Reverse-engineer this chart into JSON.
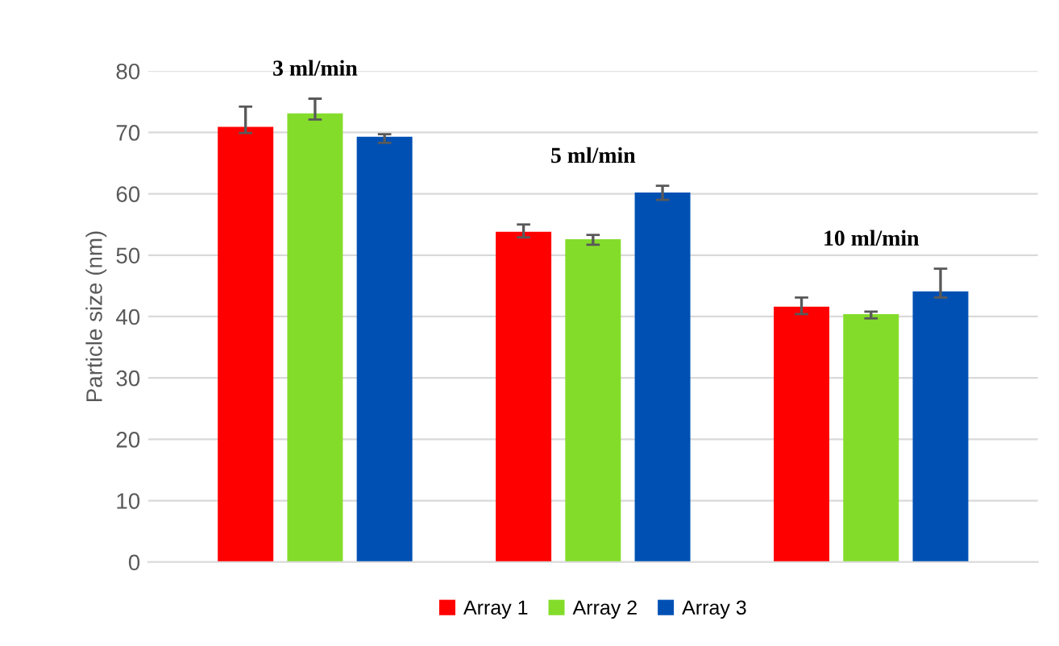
{
  "chart_data": {
    "type": "bar",
    "ylabel": "Particle size (nm)",
    "categories": [
      null,
      null,
      null
    ],
    "series": [
      {
        "name": "Array 1",
        "color": "#ff0000",
        "values": [
          70.9,
          53.8,
          41.6
        ],
        "errors": [
          [
            69.9,
            74.2
          ],
          [
            52.9,
            55.0
          ],
          [
            40.4,
            43.1
          ]
        ]
      },
      {
        "name": "Array 2",
        "color": "#84dc2a",
        "values": [
          73.1,
          52.6,
          40.4
        ],
        "errors": [
          [
            72.1,
            75.5
          ],
          [
            51.7,
            53.3
          ],
          [
            39.7,
            40.8
          ]
        ]
      },
      {
        "name": "Array 3",
        "color": "#0050b4",
        "values": [
          69.3,
          60.2,
          44.1
        ],
        "errors": [
          [
            68.3,
            69.7
          ],
          [
            59.0,
            61.3
          ],
          [
            43.1,
            47.8
          ]
        ]
      }
    ],
    "annotations": [
      "3 ml/min",
      "5 ml/min",
      "10 ml/min"
    ],
    "ylim": [
      0,
      80
    ],
    "yticks": [
      0,
      10,
      20,
      30,
      40,
      50,
      60,
      70,
      80
    ],
    "grid": "y",
    "legend": "bottom"
  }
}
